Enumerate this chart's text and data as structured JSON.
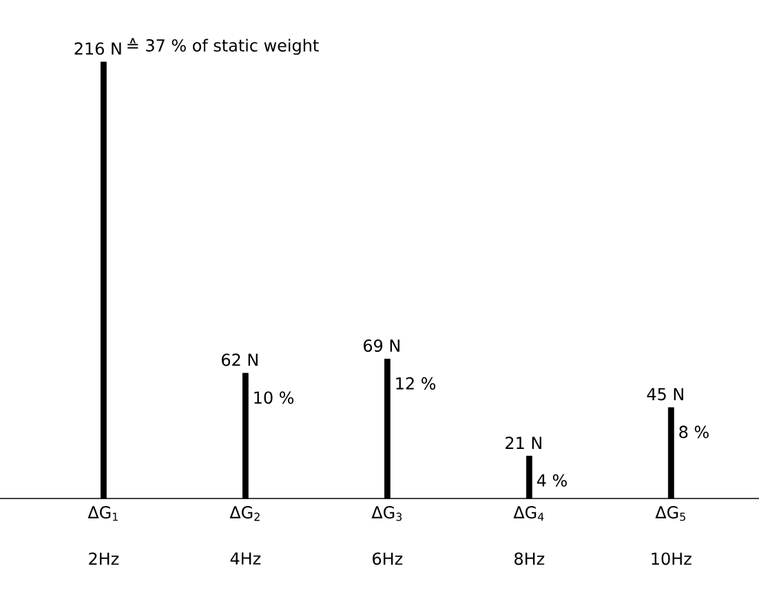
{
  "chart_data": {
    "type": "bar",
    "categories": [
      "ΔG$_{1}$",
      "ΔG$_{2}$",
      "ΔG$_{3}$",
      "ΔG$_{4}$",
      "ΔG$_{5}$"
    ],
    "values": [
      216,
      62,
      69,
      21,
      45
    ],
    "value_labels": [
      "216 N",
      "62 N",
      "69 N",
      "21 N",
      "45 N"
    ],
    "color": "#000000",
    "ylim": [
      0,
      216
    ],
    "tick_labels": "x",
    "annotations": [
      {
        "text": "≙ 37 % of static weight",
        "x": "ΔG$_{1}$",
        "y": 216
      },
      {
        "text": "10 %",
        "x": "ΔG$_{2}$",
        "y": 62
      },
      {
        "text": "12 %",
        "x": "ΔG$_{3}$",
        "y": 69
      },
      {
        "text": "4 %",
        "x": "ΔG$_{4}$",
        "y": 21
      },
      {
        "text": "8 %",
        "x": "ΔG$_{5}$",
        "y": 45
      },
      "2Hz",
      "4Hz",
      "6Hz",
      "8Hz",
      "10Hz"
    ]
  }
}
